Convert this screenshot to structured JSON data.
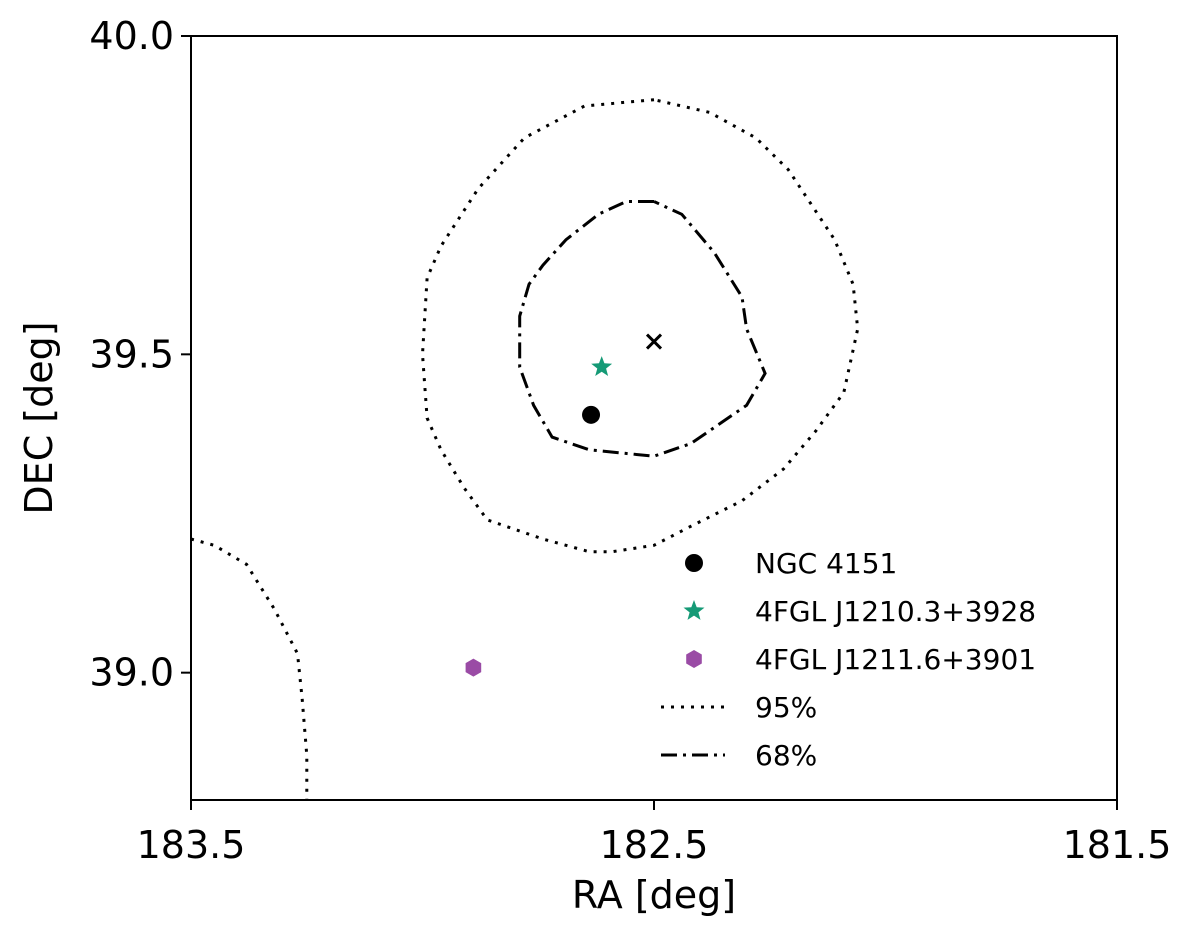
{
  "chart_data": {
    "type": "scatter",
    "title": "",
    "xlabel": "RA [deg]",
    "ylabel": "DEC [deg]",
    "xlim": [
      183.5,
      181.5
    ],
    "ylim": [
      38.8,
      40.0
    ],
    "x_inverted": true,
    "grid": false,
    "legend_position": "lower-right",
    "xticks": [
      {
        "value": 183.5,
        "label": "183.5"
      },
      {
        "value": 182.5,
        "label": "182.5"
      },
      {
        "value": 181.5,
        "label": "181.5"
      }
    ],
    "yticks": [
      {
        "value": 39.0,
        "label": "39.0"
      },
      {
        "value": 39.5,
        "label": "39.5"
      },
      {
        "value": 40.0,
        "label": "40.0"
      }
    ],
    "center_marker": {
      "x": 182.5,
      "y": 39.52,
      "marker": "x",
      "color": "#000000"
    },
    "series": [
      {
        "name": "NGC 4151",
        "marker": "circle",
        "color": "#000000",
        "points": [
          {
            "x": 182.636,
            "y": 39.405
          }
        ]
      },
      {
        "name": "4FGL J1210.3+3928",
        "marker": "star",
        "color": "#159a76",
        "points": [
          {
            "x": 182.613,
            "y": 39.48
          }
        ]
      },
      {
        "name": "4FGL J1211.6+3901",
        "marker": "hexagon",
        "color": "#9a4ba5",
        "points": [
          {
            "x": 182.89,
            "y": 39.008
          }
        ]
      }
    ],
    "contours": [
      {
        "name": "95%",
        "style": "dotted",
        "color": "#000000",
        "paths": [
          [
            [
              182.5,
              39.9
            ],
            [
              182.65,
              39.89
            ],
            [
              182.78,
              39.84
            ],
            [
              182.88,
              39.76
            ],
            [
              182.96,
              39.67
            ],
            [
              182.99,
              39.62
            ],
            [
              183.0,
              39.5
            ],
            [
              182.99,
              39.4
            ],
            [
              182.96,
              39.35
            ],
            [
              182.91,
              39.29
            ],
            [
              182.86,
              39.24
            ],
            [
              182.74,
              39.21
            ],
            [
              182.64,
              39.19
            ],
            [
              182.59,
              39.19
            ],
            [
              182.5,
              39.2
            ],
            [
              182.42,
              39.23
            ],
            [
              182.31,
              39.27
            ],
            [
              182.22,
              39.32
            ],
            [
              182.15,
              39.38
            ],
            [
              182.09,
              39.44
            ],
            [
              182.06,
              39.54
            ],
            [
              182.07,
              39.61
            ],
            [
              182.11,
              39.68
            ],
            [
              182.21,
              39.79
            ],
            [
              182.28,
              39.84
            ],
            [
              182.38,
              39.88
            ],
            [
              182.5,
              39.9
            ]
          ],
          [
            [
              183.5,
              39.21
            ],
            [
              183.45,
              39.2
            ],
            [
              183.38,
              39.17
            ],
            [
              183.32,
              39.1
            ],
            [
              183.27,
              39.03
            ],
            [
              183.26,
              38.96
            ],
            [
              183.25,
              38.87
            ],
            [
              183.25,
              38.8
            ]
          ]
        ]
      },
      {
        "name": "68%",
        "style": "dashdot",
        "color": "#000000",
        "paths": [
          [
            [
              182.5,
              39.74
            ],
            [
              182.56,
              39.74
            ],
            [
              182.62,
              39.72
            ],
            [
              182.69,
              39.68
            ],
            [
              182.74,
              39.64
            ],
            [
              182.77,
              39.61
            ],
            [
              182.79,
              39.56
            ],
            [
              182.79,
              39.48
            ],
            [
              182.76,
              39.42
            ],
            [
              182.72,
              39.37
            ],
            [
              182.64,
              39.35
            ],
            [
              182.5,
              39.34
            ],
            [
              182.42,
              39.36
            ],
            [
              182.36,
              39.39
            ],
            [
              182.3,
              39.42
            ],
            [
              182.26,
              39.47
            ],
            [
              182.3,
              39.54
            ],
            [
              182.31,
              39.59
            ],
            [
              182.37,
              39.66
            ],
            [
              182.44,
              39.72
            ],
            [
              182.5,
              39.74
            ]
          ]
        ]
      }
    ]
  }
}
